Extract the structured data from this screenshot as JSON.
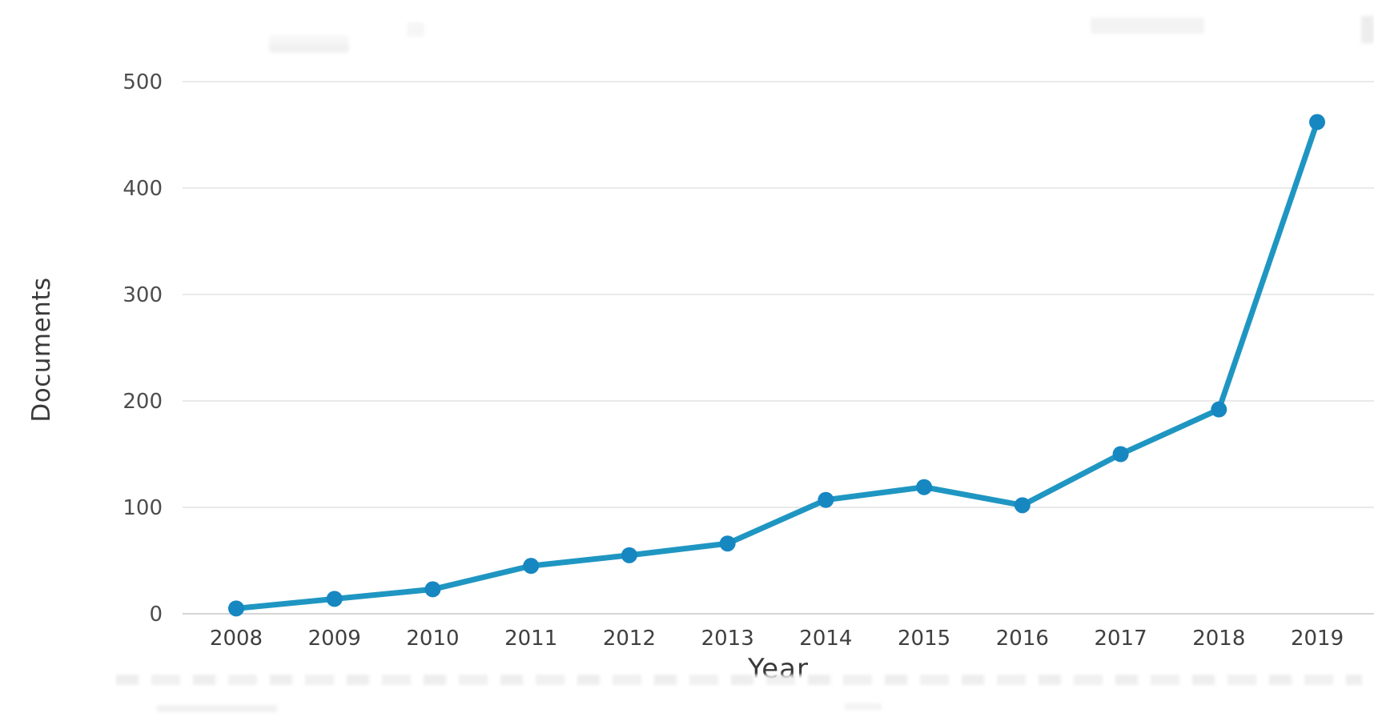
{
  "chart_data": {
    "type": "line",
    "title": "",
    "xlabel": "Year",
    "ylabel": "Documents",
    "categories": [
      "2008",
      "2009",
      "2010",
      "2011",
      "2012",
      "2013",
      "2014",
      "2015",
      "2016",
      "2017",
      "2018",
      "2019"
    ],
    "series": [
      {
        "name": "Documents",
        "values": [
          5,
          14,
          23,
          45,
          55,
          66,
          107,
          119,
          102,
          150,
          192,
          462
        ]
      }
    ],
    "yticks": [
      0,
      100,
      200,
      300,
      400,
      500
    ],
    "ylim": [
      0,
      500
    ],
    "grid": true,
    "legend_position": "none",
    "line_color": "#1f96c2",
    "marker_color": "#1787c1",
    "gridline_color": "#eaeaea",
    "axis_line_color": "#d5d5d5",
    "ytick_label_color": "#4d4d4d",
    "xtick_label_color": "#3f3f3f",
    "axis_title_color": "#3a3a3a"
  }
}
